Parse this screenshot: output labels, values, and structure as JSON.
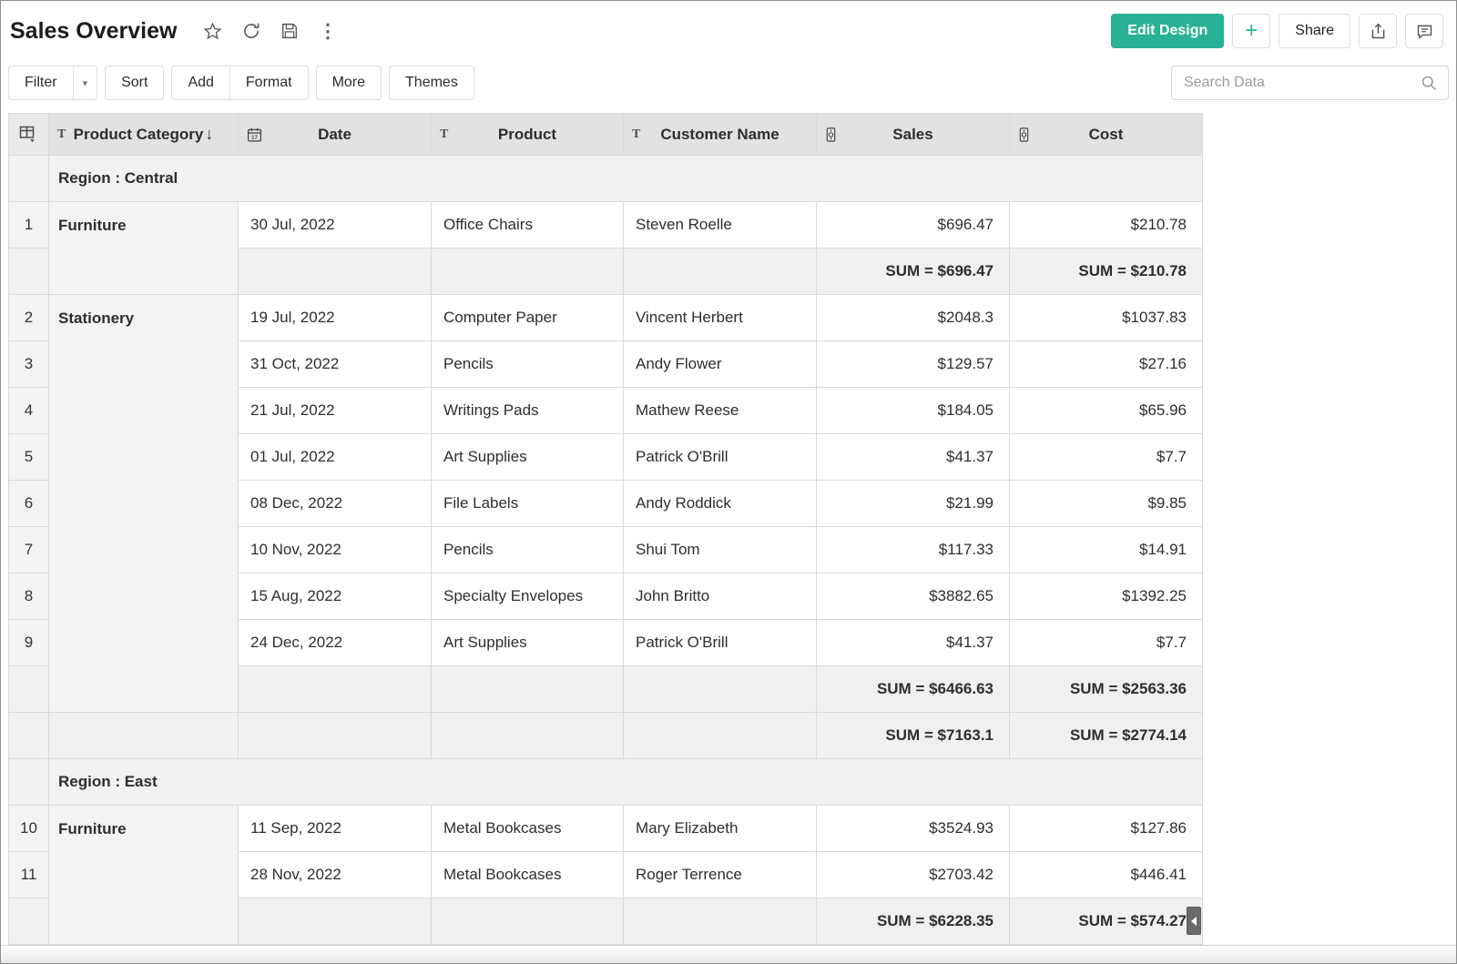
{
  "header": {
    "title": "Sales Overview",
    "edit_design_label": "Edit Design",
    "plus_label": "+",
    "share_label": "Share"
  },
  "toolbar": {
    "filter_label": "Filter",
    "sort_label": "Sort",
    "add_label": "Add",
    "format_label": "Format",
    "more_label": "More",
    "themes_label": "Themes",
    "search_placeholder": "Search Data"
  },
  "icons": {
    "star": "☆",
    "kebab": "⋮",
    "caret_down": "▾",
    "sort_desc": "↓"
  },
  "colors": {
    "accent_green": "#28b293",
    "header_bg": "#e2e2e2",
    "region_bg": "#f1f1f1",
    "sum_bg": "#f0f0f0",
    "category_bg": "#f3f3f3",
    "grid_border": "#d9d9d9"
  },
  "table": {
    "columns": [
      {
        "label": "Product Category",
        "type": "text",
        "sort": "desc"
      },
      {
        "label": "Date",
        "type": "date"
      },
      {
        "label": "Product",
        "type": "text"
      },
      {
        "label": "Customer Name",
        "type": "text"
      },
      {
        "label": "Sales",
        "type": "number"
      },
      {
        "label": "Cost",
        "type": "number"
      }
    ],
    "sum_prefix": "SUM = ",
    "groups": [
      {
        "region_label": "Region : Central",
        "blocks": [
          {
            "category": "Furniture",
            "rows": [
              {
                "num": "1",
                "date": "30 Jul, 2022",
                "product": "Office Chairs",
                "customer": "Steven Roelle",
                "sales": "$696.47",
                "cost": "$210.78"
              }
            ],
            "subtotal": {
              "sales": "SUM = $696.47",
              "cost": "SUM = $210.78"
            }
          },
          {
            "category": "Stationery",
            "rows": [
              {
                "num": "2",
                "date": "19 Jul, 2022",
                "product": "Computer Paper",
                "customer": "Vincent Herbert",
                "sales": "$2048.3",
                "cost": "$1037.83"
              },
              {
                "num": "3",
                "date": "31 Oct, 2022",
                "product": "Pencils",
                "customer": "Andy Flower",
                "sales": "$129.57",
                "cost": "$27.16"
              },
              {
                "num": "4",
                "date": "21 Jul, 2022",
                "product": "Writings Pads",
                "customer": "Mathew Reese",
                "sales": "$184.05",
                "cost": "$65.96"
              },
              {
                "num": "5",
                "date": "01 Jul, 2022",
                "product": "Art Supplies",
                "customer": "Patrick O'Brill",
                "sales": "$41.37",
                "cost": "$7.7"
              },
              {
                "num": "6",
                "date": "08 Dec, 2022",
                "product": "File Labels",
                "customer": "Andy Roddick",
                "sales": "$21.99",
                "cost": "$9.85"
              },
              {
                "num": "7",
                "date": "10 Nov, 2022",
                "product": "Pencils",
                "customer": "Shui Tom",
                "sales": "$117.33",
                "cost": "$14.91"
              },
              {
                "num": "8",
                "date": "15 Aug, 2022",
                "product": "Specialty Envelopes",
                "customer": "John Britto",
                "sales": "$3882.65",
                "cost": "$1392.25"
              },
              {
                "num": "9",
                "date": "24 Dec, 2022",
                "product": "Art Supplies",
                "customer": "Patrick O'Brill",
                "sales": "$41.37",
                "cost": "$7.7"
              }
            ],
            "subtotal": {
              "sales": "SUM = $6466.63",
              "cost": "SUM = $2563.36"
            }
          }
        ],
        "total": {
          "sales": "SUM = $7163.1",
          "cost": "SUM = $2774.14"
        }
      },
      {
        "region_label": "Region : East",
        "blocks": [
          {
            "category": "Furniture",
            "rows": [
              {
                "num": "10",
                "date": "11 Sep, 2022",
                "product": "Metal Bookcases",
                "customer": "Mary Elizabeth",
                "sales": "$3524.93",
                "cost": "$127.86"
              },
              {
                "num": "11",
                "date": "28 Nov, 2022",
                "product": "Metal Bookcases",
                "customer": "Roger Terrence",
                "sales": "$2703.42",
                "cost": "$446.41"
              }
            ],
            "subtotal": {
              "sales": "SUM = $6228.35",
              "cost": "SUM = $574.27"
            }
          }
        ],
        "total": null
      }
    ]
  }
}
